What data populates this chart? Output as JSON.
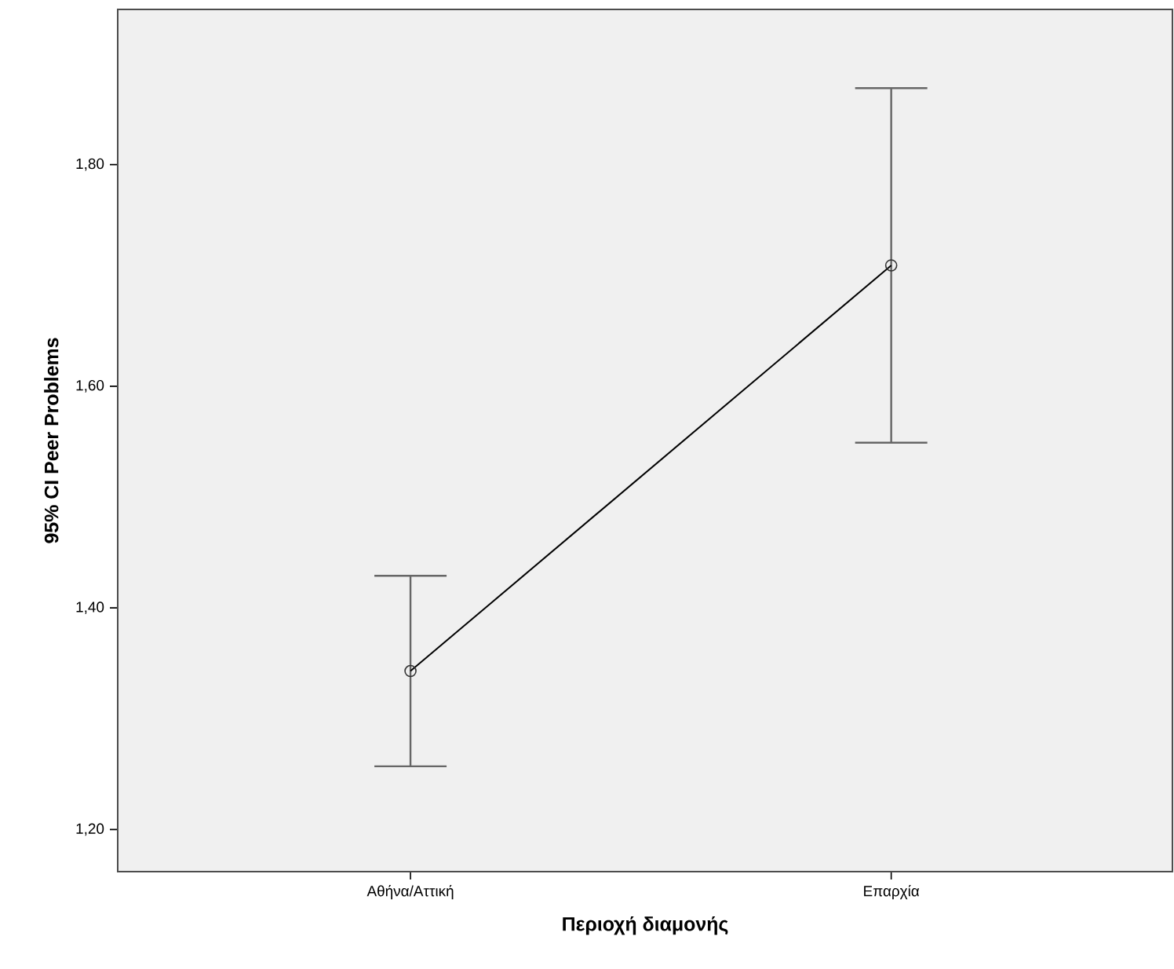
{
  "chart_data": {
    "type": "line",
    "xlabel": "Περιοχή διαμονής",
    "ylabel": "95% CI Peer Problems",
    "categories": [
      "Αθήνα/Αττική",
      "Επαρχία"
    ],
    "values": [
      1.343,
      1.709
    ],
    "errors": [
      0.086,
      0.16
    ],
    "color": "#000000",
    "marker": "circle",
    "ylim": [
      1.162,
      1.94
    ],
    "yticks": [
      {
        "value": 1.2,
        "label": "1,20"
      },
      {
        "value": 1.4,
        "label": "1,40"
      },
      {
        "value": 1.6,
        "label": "1,60"
      },
      {
        "value": 1.8,
        "label": "1,80"
      }
    ]
  }
}
